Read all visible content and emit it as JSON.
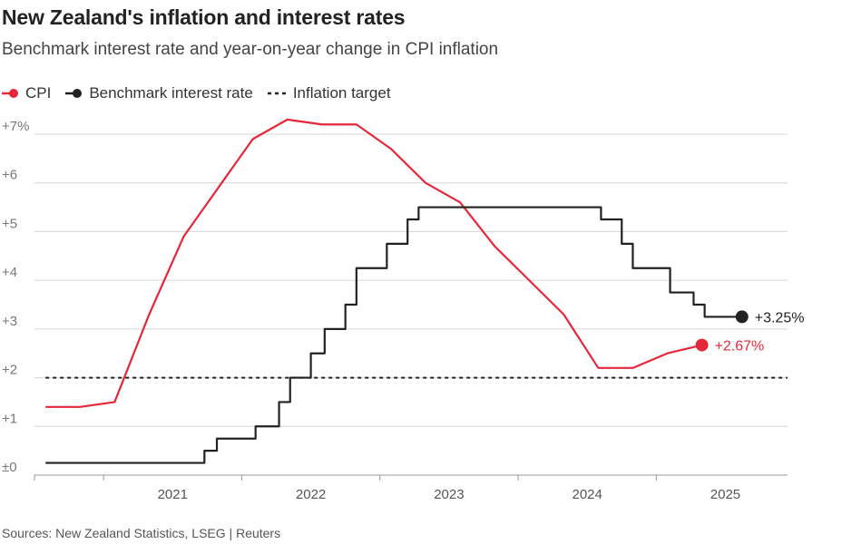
{
  "header": {
    "title": "New Zealand's inflation and interest rates",
    "subtitle": "Benchmark interest rate and year-on-year change in CPI inflation"
  },
  "footer": {
    "source": "Sources: New Zealand Statistics, LSEG | Reuters"
  },
  "chart_data": {
    "type": "line",
    "title": "New Zealand's inflation and interest rates",
    "subtitle": "Benchmark interest rate and year-on-year change in CPI inflation",
    "xlabel": "",
    "ylabel": "",
    "ylim": [
      0,
      7
    ],
    "xlim": [
      2020.5,
      2025.95
    ],
    "grid": true,
    "legend_position": "top-left",
    "y_ticks": [
      {
        "value": 0,
        "label": "±0"
      },
      {
        "value": 1,
        "label": "+1"
      },
      {
        "value": 2,
        "label": "+2"
      },
      {
        "value": 3,
        "label": "+3"
      },
      {
        "value": 4,
        "label": "+4"
      },
      {
        "value": 5,
        "label": "+5"
      },
      {
        "value": 6,
        "label": "+6"
      },
      {
        "value": 7,
        "label": "+7%"
      }
    ],
    "x_ticks": [
      {
        "value": 2021.0,
        "label": "2021"
      },
      {
        "value": 2022.0,
        "label": "2022"
      },
      {
        "value": 2023.0,
        "label": "2023"
      },
      {
        "value": 2024.0,
        "label": "2024"
      },
      {
        "value": 2025.0,
        "label": "2025"
      }
    ],
    "series": [
      {
        "name": "CPI",
        "legend_label": "CPI",
        "color": "#e4283a",
        "style": "line",
        "end_label": "+2.67%",
        "x": [
          2020.58,
          2020.83,
          2021.08,
          2021.33,
          2021.58,
          2021.83,
          2022.08,
          2022.33,
          2022.58,
          2022.83,
          2023.08,
          2023.33,
          2023.58,
          2023.83,
          2024.08,
          2024.33,
          2024.58,
          2024.83,
          2025.08,
          2025.33
        ],
        "values": [
          1.4,
          1.4,
          1.5,
          3.3,
          4.9,
          5.9,
          6.9,
          7.3,
          7.2,
          7.2,
          6.7,
          6.0,
          5.6,
          4.7,
          4.0,
          3.3,
          2.2,
          2.2,
          2.5,
          2.67
        ]
      },
      {
        "name": "Benchmark interest rate",
        "legend_label": "Benchmark interest rate",
        "color": "#222222",
        "style": "step",
        "end_label": "+3.25%",
        "x": [
          2020.58,
          2021.73,
          2021.82,
          2022.1,
          2022.27,
          2022.35,
          2022.5,
          2022.6,
          2022.75,
          2022.83,
          2023.05,
          2023.2,
          2023.28,
          2024.6,
          2024.75,
          2024.83,
          2025.1,
          2025.27,
          2025.35,
          2025.62
        ],
        "values": [
          0.25,
          0.5,
          0.75,
          1.0,
          1.5,
          2.0,
          2.5,
          3.0,
          3.5,
          4.25,
          4.75,
          5.25,
          5.5,
          5.25,
          4.75,
          4.25,
          3.75,
          3.5,
          3.25,
          3.25
        ]
      },
      {
        "name": "Inflation target",
        "legend_label": "Inflation target",
        "color": "#222222",
        "style": "dashed",
        "x": [
          2020.58,
          2025.95
        ],
        "values": [
          2.0,
          2.0
        ]
      }
    ]
  }
}
